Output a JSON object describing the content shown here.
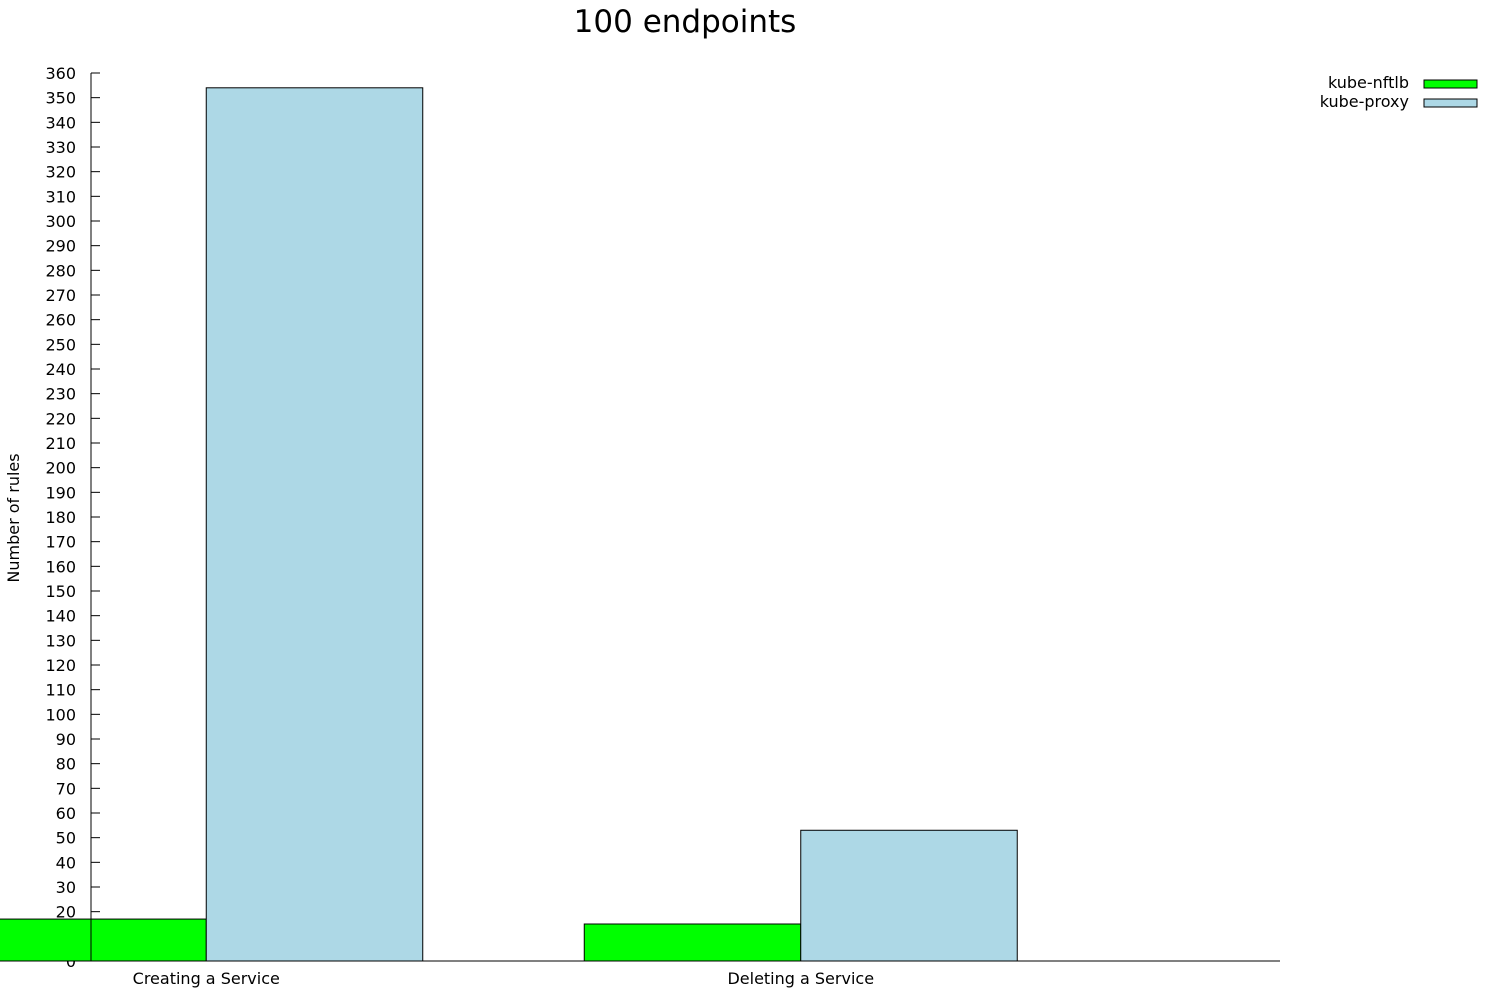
{
  "chart_data": {
    "type": "bar",
    "title": "100 endpoints",
    "xlabel": "",
    "ylabel": "Number of rules",
    "categories": [
      "Creating a Service",
      "Deleting a Service"
    ],
    "series": [
      {
        "name": "kube-nftlb",
        "values": [
          17,
          15
        ],
        "color": "#00ff00"
      },
      {
        "name": "kube-proxy",
        "values": [
          354,
          53
        ],
        "color": "#add8e6"
      }
    ],
    "ylim": [
      0,
      360
    ],
    "ytick_step": 10,
    "grid": false,
    "legend_position": "top-right"
  }
}
